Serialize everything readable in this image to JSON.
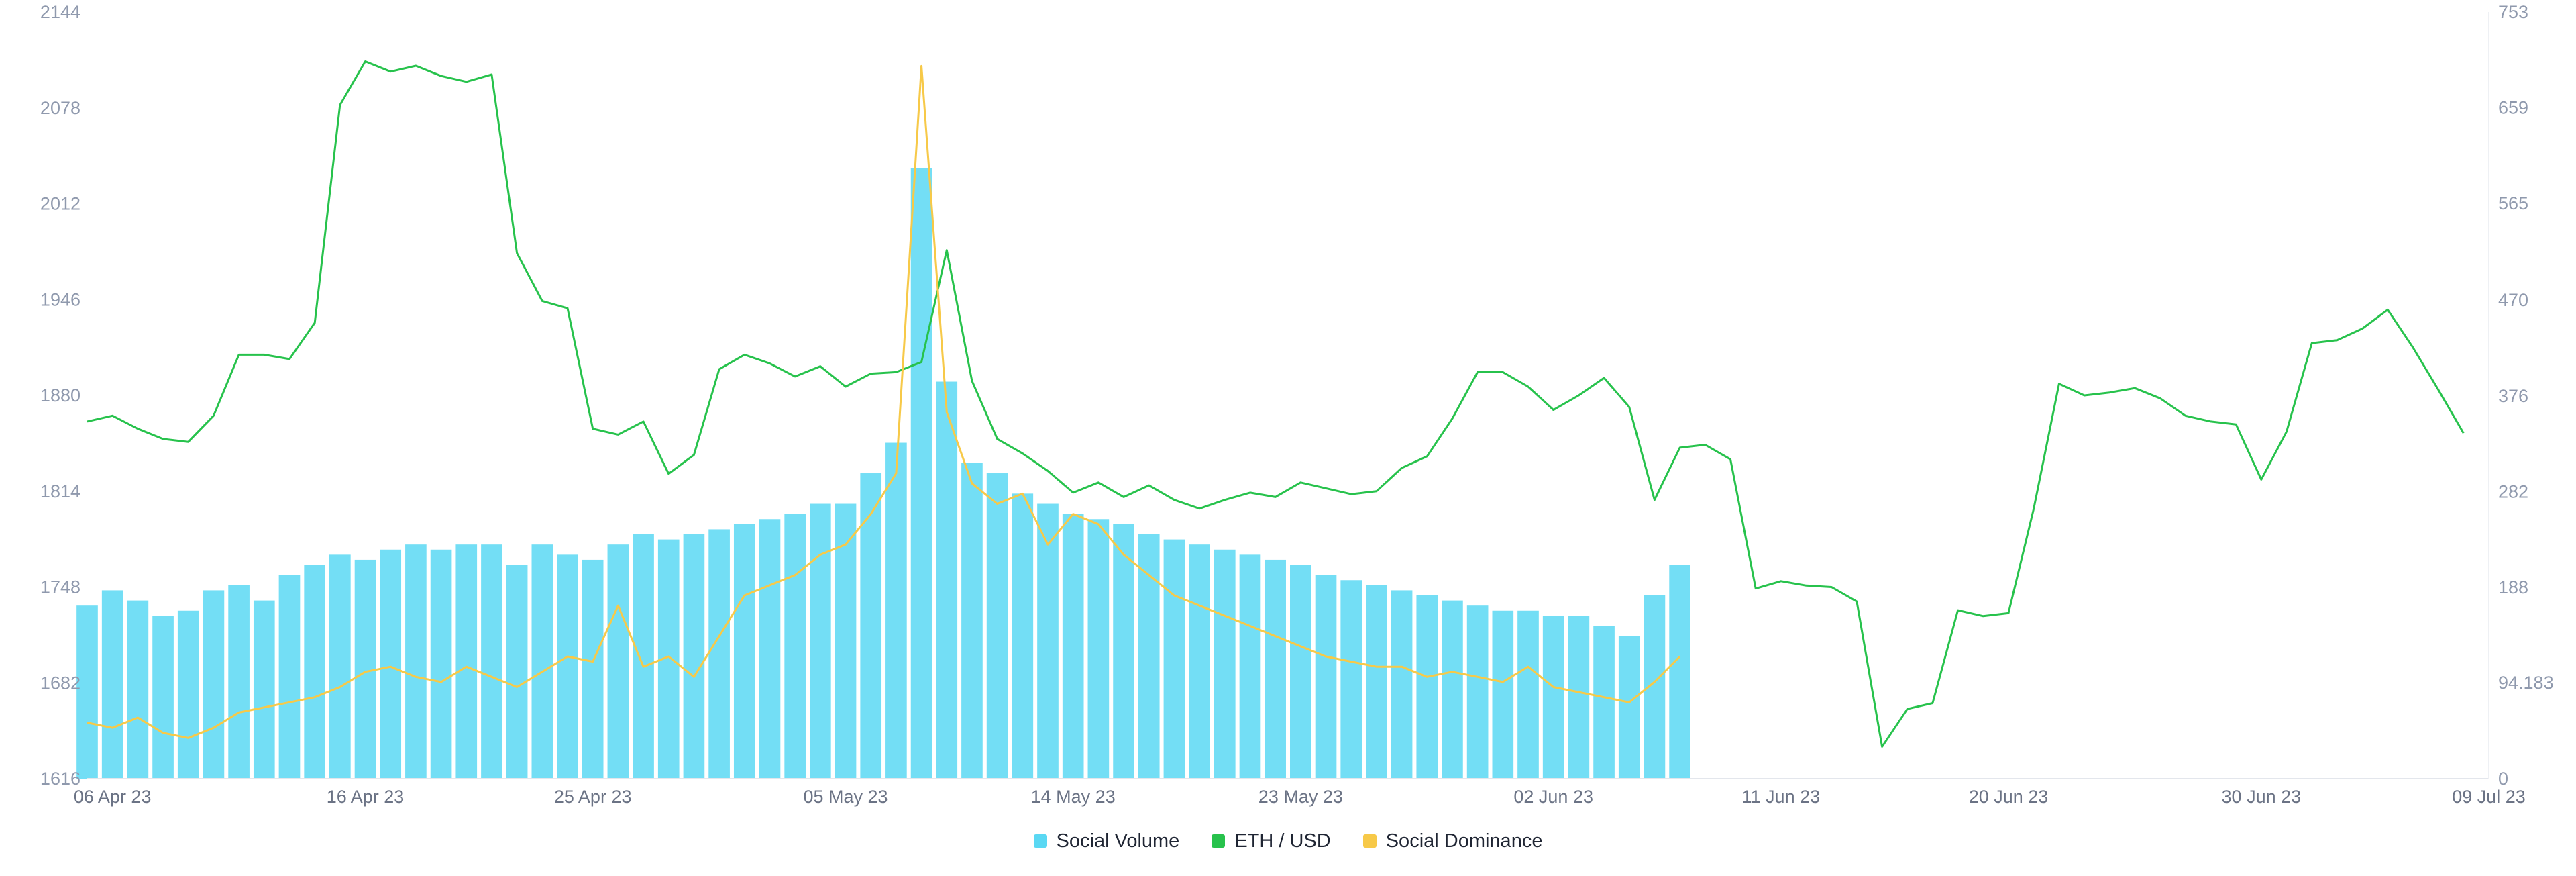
{
  "legend": {
    "items": [
      {
        "label": "Social Volume",
        "color": "#5ad8f3"
      },
      {
        "label": "ETH / USD",
        "color": "#27c24c"
      },
      {
        "label": "Social Dominance",
        "color": "#f7c948"
      }
    ]
  },
  "chart_data": {
    "type": "line",
    "x_axis": {
      "type": "date",
      "range": [
        "2023-04-05",
        "2023-07-09"
      ],
      "ticks": [
        "06 Apr 23",
        "16 Apr 23",
        "25 Apr 23",
        "05 May 23",
        "14 May 23",
        "23 May 23",
        "02 Jun 23",
        "11 Jun 23",
        "20 Jun 23",
        "30 Jun 23",
        "09 Jul 23"
      ],
      "tick_dates": [
        "2023-04-06",
        "2023-04-16",
        "2023-04-25",
        "2023-05-05",
        "2023-05-14",
        "2023-05-23",
        "2023-06-02",
        "2023-06-11",
        "2023-06-20",
        "2023-06-30",
        "2023-07-09"
      ]
    },
    "y_left": {
      "series": "ETH / USD",
      "range": [
        1616,
        2144
      ],
      "ticks": [
        "2144",
        "2078",
        "2012",
        "1946",
        "1880",
        "1814",
        "1748",
        "1682",
        "1616"
      ]
    },
    "y_right": {
      "series": "Social Volume",
      "range": [
        0,
        753
      ],
      "ticks": [
        "753",
        "659",
        "565",
        "470",
        "376",
        "282",
        "188",
        "94.183",
        "0"
      ]
    },
    "grid": false,
    "legend_position": "bottom-center",
    "series": [
      {
        "name": "ETH / USD",
        "type": "line",
        "axis": "left",
        "color": "#27c24c",
        "points": [
          [
            "2023-04-05",
            1862
          ],
          [
            "2023-04-06",
            1866
          ],
          [
            "2023-04-07",
            1857
          ],
          [
            "2023-04-08",
            1850
          ],
          [
            "2023-04-09",
            1848
          ],
          [
            "2023-04-10",
            1866
          ],
          [
            "2023-04-11",
            1908
          ],
          [
            "2023-04-12",
            1908
          ],
          [
            "2023-04-13",
            1905
          ],
          [
            "2023-04-14",
            1930
          ],
          [
            "2023-04-15",
            2080
          ],
          [
            "2023-04-16",
            2110
          ],
          [
            "2023-04-17",
            2103
          ],
          [
            "2023-04-18",
            2107
          ],
          [
            "2023-04-19",
            2100
          ],
          [
            "2023-04-20",
            2096
          ],
          [
            "2023-04-21",
            2101
          ],
          [
            "2023-04-22",
            1978
          ],
          [
            "2023-04-23",
            1945
          ],
          [
            "2023-04-24",
            1940
          ],
          [
            "2023-04-25",
            1857
          ],
          [
            "2023-04-26",
            1853
          ],
          [
            "2023-04-27",
            1862
          ],
          [
            "2023-04-28",
            1826
          ],
          [
            "2023-04-29",
            1839
          ],
          [
            "2023-04-30",
            1898
          ],
          [
            "2023-05-01",
            1908
          ],
          [
            "2023-05-02",
            1902
          ],
          [
            "2023-05-03",
            1893
          ],
          [
            "2023-05-04",
            1900
          ],
          [
            "2023-05-05",
            1886
          ],
          [
            "2023-05-06",
            1895
          ],
          [
            "2023-05-07",
            1896
          ],
          [
            "2023-05-08",
            1903
          ],
          [
            "2023-05-09",
            1980
          ],
          [
            "2023-05-10",
            1890
          ],
          [
            "2023-05-11",
            1850
          ],
          [
            "2023-05-12",
            1840
          ],
          [
            "2023-05-13",
            1828
          ],
          [
            "2023-05-14",
            1813
          ],
          [
            "2023-05-15",
            1820
          ],
          [
            "2023-05-16",
            1810
          ],
          [
            "2023-05-17",
            1818
          ],
          [
            "2023-05-18",
            1808
          ],
          [
            "2023-05-19",
            1802
          ],
          [
            "2023-05-20",
            1808
          ],
          [
            "2023-05-21",
            1813
          ],
          [
            "2023-05-22",
            1810
          ],
          [
            "2023-05-23",
            1820
          ],
          [
            "2023-05-24",
            1816
          ],
          [
            "2023-05-25",
            1812
          ],
          [
            "2023-05-26",
            1814
          ],
          [
            "2023-05-27",
            1830
          ],
          [
            "2023-05-28",
            1838
          ],
          [
            "2023-05-29",
            1864
          ],
          [
            "2023-05-30",
            1896
          ],
          [
            "2023-05-31",
            1896
          ],
          [
            "2023-06-01",
            1886
          ],
          [
            "2023-06-02",
            1870
          ],
          [
            "2023-06-03",
            1880
          ],
          [
            "2023-06-04",
            1892
          ],
          [
            "2023-06-05",
            1872
          ],
          [
            "2023-06-06",
            1808
          ],
          [
            "2023-06-07",
            1844
          ],
          [
            "2023-06-08",
            1846
          ],
          [
            "2023-06-09",
            1836
          ],
          [
            "2023-06-10",
            1747
          ],
          [
            "2023-06-11",
            1752
          ],
          [
            "2023-06-12",
            1749
          ],
          [
            "2023-06-13",
            1748
          ],
          [
            "2023-06-14",
            1738
          ],
          [
            "2023-06-15",
            1638
          ],
          [
            "2023-06-16",
            1664
          ],
          [
            "2023-06-17",
            1668
          ],
          [
            "2023-06-18",
            1732
          ],
          [
            "2023-06-19",
            1728
          ],
          [
            "2023-06-20",
            1730
          ],
          [
            "2023-06-21",
            1802
          ],
          [
            "2023-06-22",
            1888
          ],
          [
            "2023-06-23",
            1880
          ],
          [
            "2023-06-24",
            1882
          ],
          [
            "2023-06-25",
            1885
          ],
          [
            "2023-06-26",
            1878
          ],
          [
            "2023-06-27",
            1866
          ],
          [
            "2023-06-28",
            1862
          ],
          [
            "2023-06-29",
            1860
          ],
          [
            "2023-06-30",
            1822
          ],
          [
            "2023-07-01",
            1855
          ],
          [
            "2023-07-02",
            1916
          ],
          [
            "2023-07-03",
            1918
          ],
          [
            "2023-07-04",
            1926
          ],
          [
            "2023-07-05",
            1939
          ],
          [
            "2023-07-06",
            1913
          ],
          [
            "2023-07-07",
            1884
          ],
          [
            "2023-07-08",
            1854
          ]
        ]
      },
      {
        "name": "Social Volume",
        "type": "bar",
        "axis": "right",
        "color": "#5ad8f3",
        "x": [
          "2023-04-05",
          "2023-04-06",
          "2023-04-07",
          "2023-04-08",
          "2023-04-09",
          "2023-04-10",
          "2023-04-11",
          "2023-04-12",
          "2023-04-13",
          "2023-04-14",
          "2023-04-15",
          "2023-04-16",
          "2023-04-17",
          "2023-04-18",
          "2023-04-19",
          "2023-04-20",
          "2023-04-21",
          "2023-04-22",
          "2023-04-23",
          "2023-04-24",
          "2023-04-25",
          "2023-04-26",
          "2023-04-27",
          "2023-04-28",
          "2023-04-29",
          "2023-04-30",
          "2023-05-01",
          "2023-05-02",
          "2023-05-03",
          "2023-05-04",
          "2023-05-05",
          "2023-05-06",
          "2023-05-07",
          "2023-05-08",
          "2023-05-09",
          "2023-05-10",
          "2023-05-11",
          "2023-05-12",
          "2023-05-13",
          "2023-05-14",
          "2023-05-15",
          "2023-05-16",
          "2023-05-17",
          "2023-05-18",
          "2023-05-19",
          "2023-05-20",
          "2023-05-21",
          "2023-05-22",
          "2023-05-23",
          "2023-05-24",
          "2023-05-25",
          "2023-05-26",
          "2023-05-27",
          "2023-05-28",
          "2023-05-29",
          "2023-05-30",
          "2023-05-31",
          "2023-06-01",
          "2023-06-02",
          "2023-06-03",
          "2023-06-04",
          "2023-06-05",
          "2023-06-06",
          "2023-06-07"
        ],
        "values": [
          170,
          185,
          175,
          160,
          165,
          185,
          190,
          175,
          200,
          210,
          220,
          215,
          225,
          230,
          225,
          230,
          230,
          210,
          230,
          220,
          215,
          230,
          240,
          235,
          240,
          245,
          250,
          255,
          260,
          270,
          270,
          300,
          330,
          600,
          390,
          310,
          300,
          280,
          270,
          260,
          255,
          250,
          240,
          235,
          230,
          225,
          220,
          215,
          210,
          200,
          195,
          190,
          185,
          180,
          175,
          170,
          165,
          165,
          160,
          160,
          150,
          140,
          180,
          210
        ]
      },
      {
        "name": "Social Dominance",
        "type": "line",
        "axis": "right",
        "color": "#f7c948",
        "x": [
          "2023-04-05",
          "2023-04-06",
          "2023-04-07",
          "2023-04-08",
          "2023-04-09",
          "2023-04-10",
          "2023-04-11",
          "2023-04-12",
          "2023-04-13",
          "2023-04-14",
          "2023-04-15",
          "2023-04-16",
          "2023-04-17",
          "2023-04-18",
          "2023-04-19",
          "2023-04-20",
          "2023-04-21",
          "2023-04-22",
          "2023-04-23",
          "2023-04-24",
          "2023-04-25",
          "2023-04-26",
          "2023-04-27",
          "2023-04-28",
          "2023-04-29",
          "2023-04-30",
          "2023-05-01",
          "2023-05-02",
          "2023-05-03",
          "2023-05-04",
          "2023-05-05",
          "2023-05-06",
          "2023-05-07",
          "2023-05-08",
          "2023-05-09",
          "2023-05-10",
          "2023-05-11",
          "2023-05-12",
          "2023-05-13",
          "2023-05-14",
          "2023-05-15",
          "2023-05-16",
          "2023-05-17",
          "2023-05-18",
          "2023-05-19",
          "2023-05-20",
          "2023-05-21",
          "2023-05-22",
          "2023-05-23",
          "2023-05-24",
          "2023-05-25",
          "2023-05-26",
          "2023-05-27",
          "2023-05-28",
          "2023-05-29",
          "2023-05-30",
          "2023-05-31",
          "2023-06-01",
          "2023-06-02",
          "2023-06-03",
          "2023-06-04",
          "2023-06-05",
          "2023-06-06",
          "2023-06-07"
        ],
        "values": [
          55,
          50,
          60,
          45,
          40,
          50,
          65,
          70,
          75,
          80,
          90,
          105,
          110,
          100,
          95,
          110,
          100,
          90,
          105,
          120,
          115,
          170,
          110,
          120,
          100,
          140,
          180,
          190,
          200,
          220,
          230,
          260,
          300,
          700,
          360,
          290,
          270,
          280,
          230,
          260,
          250,
          220,
          200,
          180,
          170,
          160,
          150,
          140,
          130,
          120,
          115,
          110,
          110,
          100,
          105,
          100,
          95,
          110,
          90,
          85,
          80,
          75,
          95,
          120
        ]
      }
    ]
  }
}
